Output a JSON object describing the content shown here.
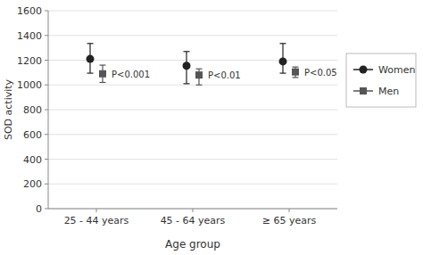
{
  "chart_data": {
    "type": "errorbar",
    "xlabel": "Age group",
    "ylabel": "SOD activity",
    "categories": [
      "25 - 44 years",
      "45 - 64 years",
      "≥ 65 years"
    ],
    "series": [
      {
        "name": "Women",
        "color": "#222222",
        "marker": "circle",
        "values": [
          1210,
          1155,
          1190
        ],
        "err_low": [
          115,
          145,
          95
        ],
        "err_high": [
          125,
          115,
          145
        ]
      },
      {
        "name": "Men",
        "color": "#555555",
        "marker": "square",
        "values": [
          1090,
          1080,
          1105
        ],
        "err_low": [
          70,
          80,
          45
        ],
        "err_high": [
          70,
          50,
          40
        ]
      }
    ],
    "annotations": [
      "P<0.001",
      "P<0.01",
      "P<0.05"
    ],
    "ylim": [
      0,
      1600
    ],
    "yticks": [
      0,
      200,
      400,
      600,
      800,
      1000,
      1200,
      1400,
      1600
    ],
    "grid": true,
    "legend": "right"
  }
}
